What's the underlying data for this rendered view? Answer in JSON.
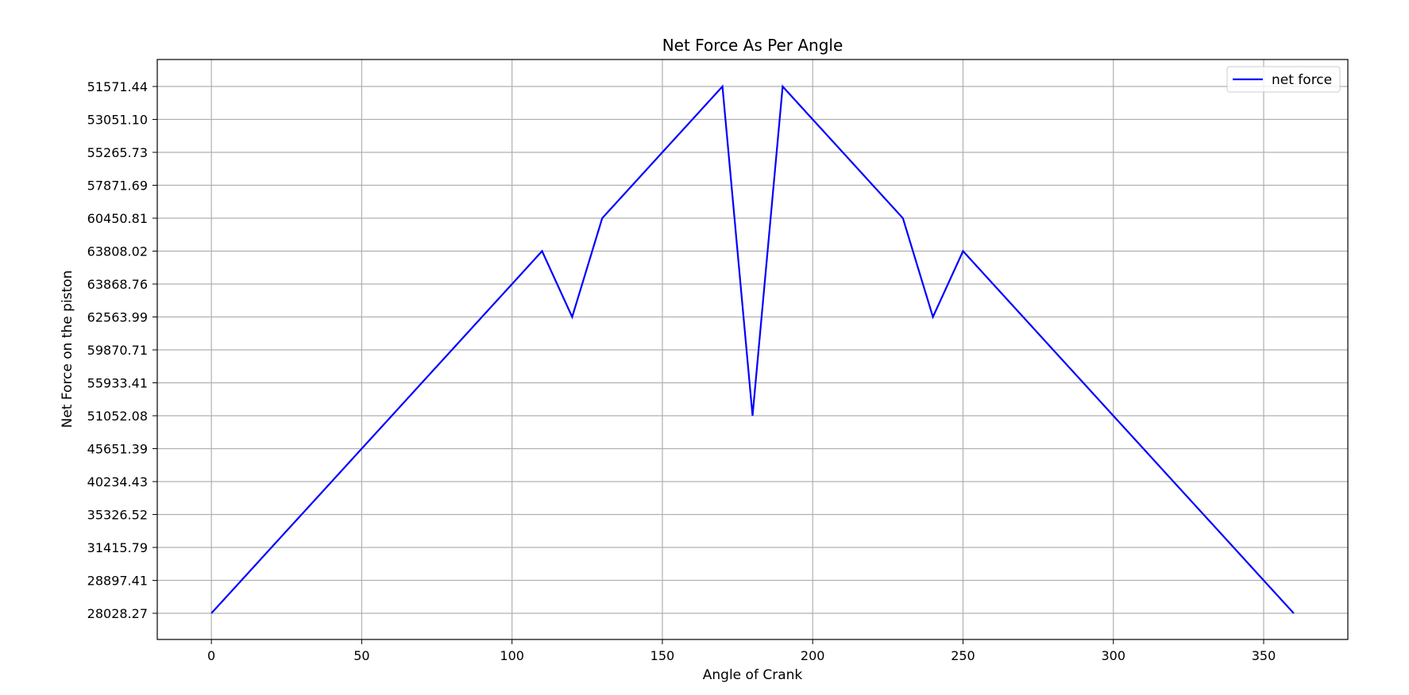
{
  "chart_data": {
    "type": "line",
    "title": "Net Force As Per Angle",
    "xlabel": "Angle of Crank",
    "ylabel": "Net Force on the piston",
    "x_ticks": [
      "0",
      "50",
      "100",
      "150",
      "200",
      "250",
      "300",
      "350"
    ],
    "x_tick_values": [
      0,
      50,
      100,
      150,
      200,
      250,
      300,
      350
    ],
    "xlim": [
      -18,
      378
    ],
    "y_axis_kind": "categorical",
    "y_categories": [
      "28028.27",
      "28897.41",
      "31415.79",
      "35326.52",
      "40234.43",
      "45651.39",
      "51052.08",
      "55933.41",
      "59870.71",
      "62563.99",
      "63868.76",
      "63808.02",
      "60450.81",
      "57871.69",
      "55265.73",
      "53051.10",
      "51571.44"
    ],
    "grid": true,
    "legend_position": "top-right",
    "series": [
      {
        "name": "net force",
        "color": "#0000ff",
        "points": [
          {
            "x": 0,
            "y": "28028.27"
          },
          {
            "x": 10,
            "y": "28897.41"
          },
          {
            "x": 20,
            "y": "31415.79"
          },
          {
            "x": 30,
            "y": "35326.52"
          },
          {
            "x": 40,
            "y": "40234.43"
          },
          {
            "x": 50,
            "y": "45651.39"
          },
          {
            "x": 60,
            "y": "51052.08"
          },
          {
            "x": 70,
            "y": "55933.41"
          },
          {
            "x": 80,
            "y": "59870.71"
          },
          {
            "x": 90,
            "y": "62563.99"
          },
          {
            "x": 100,
            "y": "63868.76"
          },
          {
            "x": 110,
            "y": "63808.02"
          },
          {
            "x": 120,
            "y": "62563.99"
          },
          {
            "x": 130,
            "y": "60450.81"
          },
          {
            "x": 140,
            "y": "57871.69"
          },
          {
            "x": 150,
            "y": "55265.73"
          },
          {
            "x": 160,
            "y": "53051.10"
          },
          {
            "x": 170,
            "y": "51571.44"
          },
          {
            "x": 180,
            "y": "51052.08"
          },
          {
            "x": 190,
            "y": "51571.44"
          },
          {
            "x": 200,
            "y": "53051.10"
          },
          {
            "x": 210,
            "y": "55265.73"
          },
          {
            "x": 220,
            "y": "57871.69"
          },
          {
            "x": 230,
            "y": "60450.81"
          },
          {
            "x": 240,
            "y": "62563.99"
          },
          {
            "x": 250,
            "y": "63808.02"
          },
          {
            "x": 260,
            "y": "63868.76"
          },
          {
            "x": 270,
            "y": "62563.99"
          },
          {
            "x": 280,
            "y": "59870.71"
          },
          {
            "x": 290,
            "y": "55933.41"
          },
          {
            "x": 300,
            "y": "51052.08"
          },
          {
            "x": 310,
            "y": "45651.39"
          },
          {
            "x": 320,
            "y": "40234.43"
          },
          {
            "x": 330,
            "y": "35326.52"
          },
          {
            "x": 340,
            "y": "31415.79"
          },
          {
            "x": 350,
            "y": "28897.41"
          },
          {
            "x": 360,
            "y": "28028.27"
          }
        ]
      }
    ]
  }
}
